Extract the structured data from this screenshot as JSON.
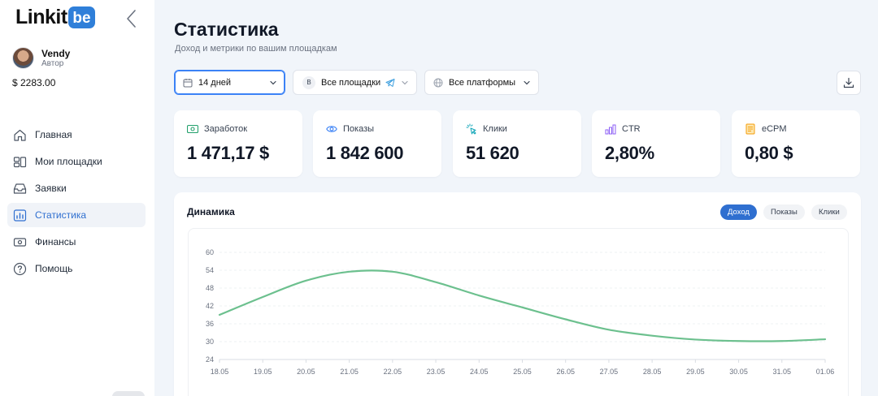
{
  "app": {
    "logo_text": "Linkit",
    "logo_mark": "be"
  },
  "user": {
    "name": "Vendy",
    "role": "Автор",
    "balance": "$ 2283.00"
  },
  "sidebar": {
    "items": [
      {
        "label": "Главная",
        "icon": "home-icon"
      },
      {
        "label": "Мои площадки",
        "icon": "sites-icon"
      },
      {
        "label": "Заявки",
        "icon": "inbox-icon"
      },
      {
        "label": "Статистика",
        "icon": "chart-icon",
        "active": true
      },
      {
        "label": "Финансы",
        "icon": "wallet-icon"
      },
      {
        "label": "Помощь",
        "icon": "help-icon"
      }
    ]
  },
  "header": {
    "title": "Статистика",
    "subtitle": "Доход и метрики по вашим площадкам"
  },
  "filters": {
    "period": "14 дней",
    "sites": "Все площадки",
    "sites_badge": "B",
    "platforms": "Все платформы"
  },
  "metrics": [
    {
      "label": "Заработок",
      "value": "1 471,17 $",
      "icon": "money-icon",
      "color": "#22a06b"
    },
    {
      "label": "Показы",
      "value": "1 842 600",
      "icon": "eye-icon",
      "color": "#3b82f6"
    },
    {
      "label": "Клики",
      "value": "51 620",
      "icon": "click-icon",
      "color": "#0ea5b7"
    },
    {
      "label": "CTR",
      "value": "2,80%",
      "icon": "bars-icon",
      "color": "#8b5cf6"
    },
    {
      "label": "eCPM",
      "value": "0,80 $",
      "icon": "receipt-icon",
      "color": "#f59e0b"
    }
  ],
  "chart_panel": {
    "title": "Динамика",
    "tabs": [
      "Доход",
      "Показы",
      "Клики"
    ],
    "active_tab": "Доход"
  },
  "colors": {
    "accent": "#2f6fd0",
    "line": "#6cc08e"
  },
  "chart_data": {
    "type": "line",
    "x": [
      "18.05",
      "19.05",
      "20.05",
      "21.05",
      "22.05",
      "23.05",
      "24.05",
      "25.05",
      "26.05",
      "27.05",
      "28.05",
      "29.05",
      "30.05",
      "31.05",
      "01.06"
    ],
    "series": [
      {
        "values": [
          39,
          45,
          50.5,
          53.5,
          53.5,
          50,
          45.5,
          41.5,
          37.5,
          34,
          32,
          30.7,
          30.2,
          30.2,
          30.8
        ]
      }
    ],
    "yticks": [
      24,
      30,
      36,
      42,
      48,
      54,
      60
    ],
    "ylim": [
      24,
      60
    ],
    "grid": true
  }
}
